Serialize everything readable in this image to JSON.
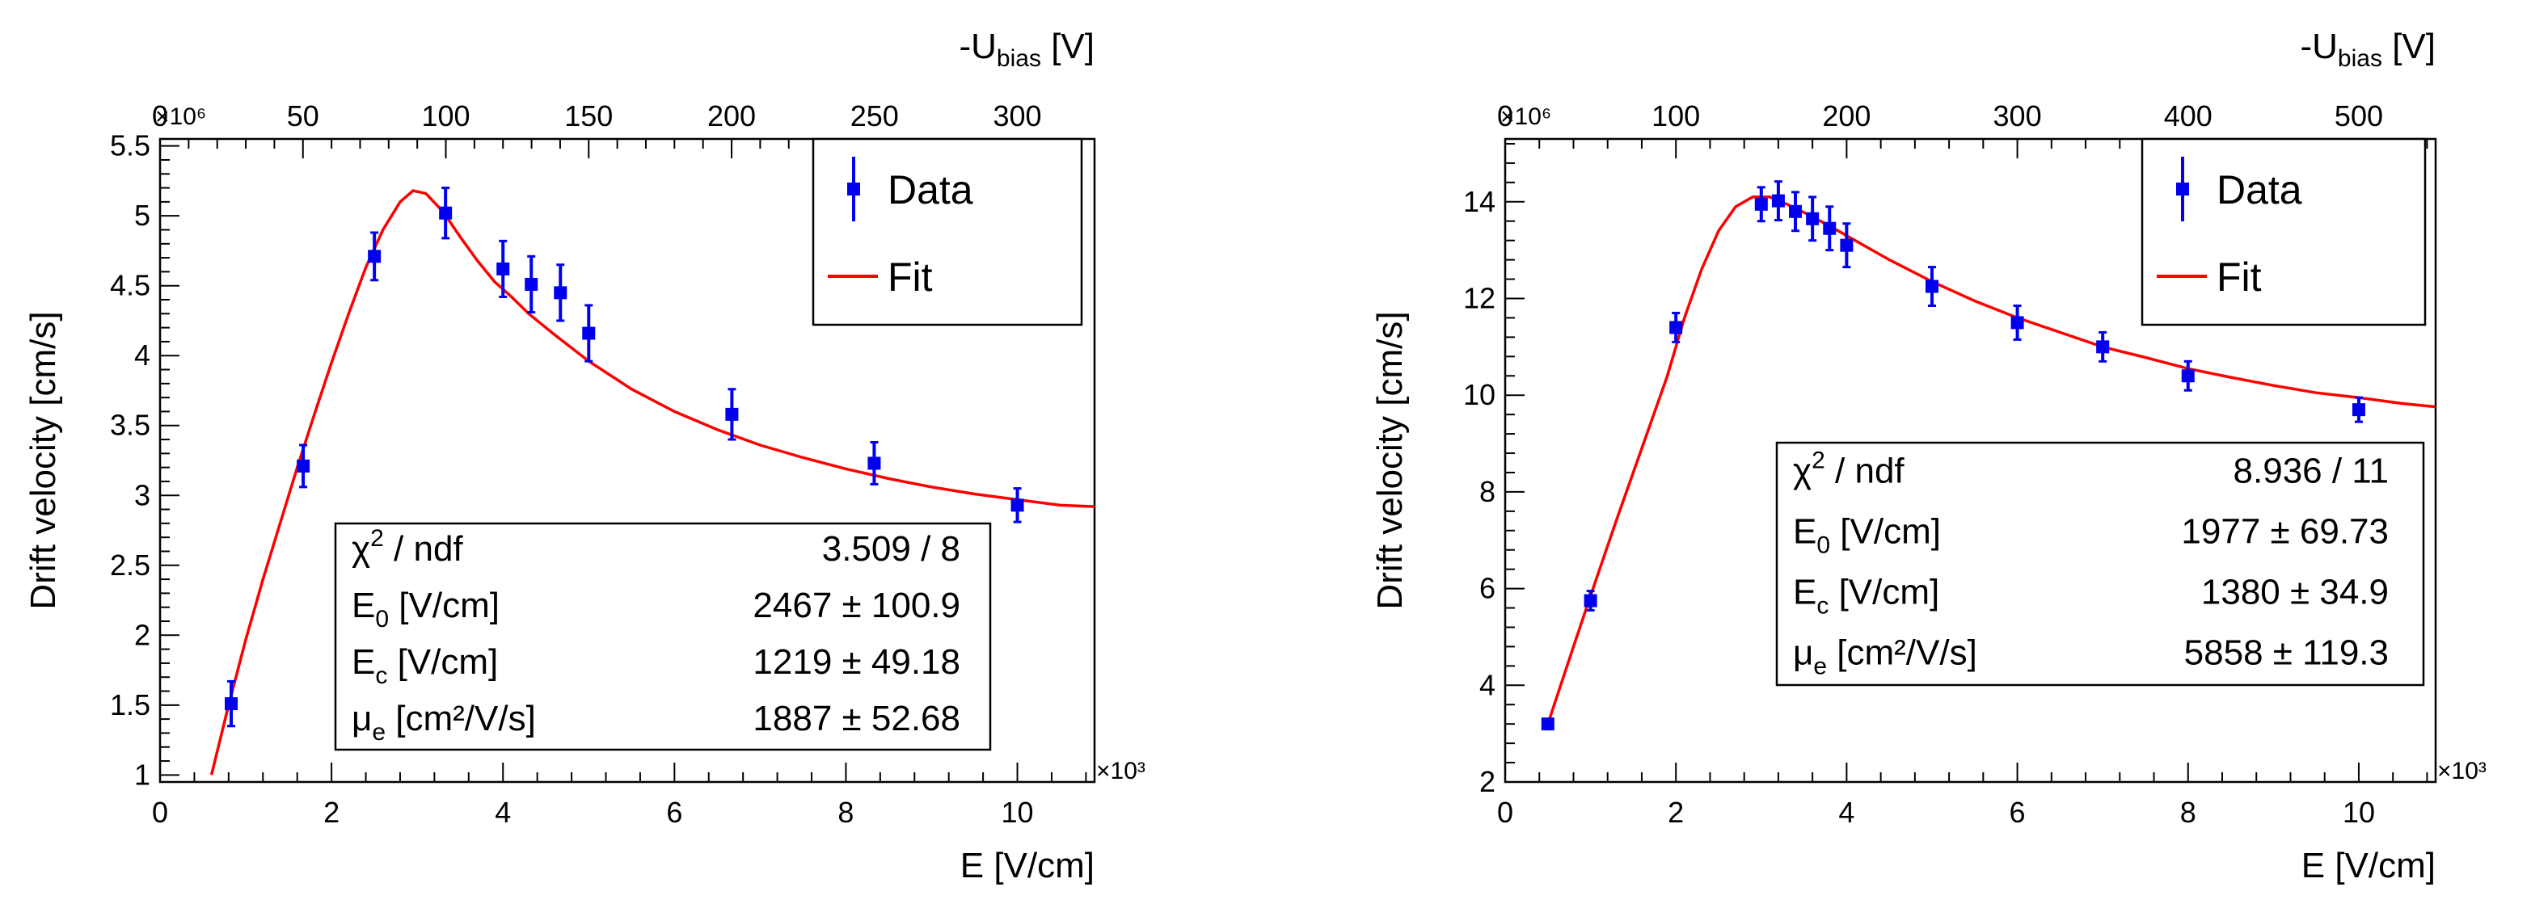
{
  "chart_data": [
    {
      "type": "scatter",
      "x_exponent_label": "×10³",
      "y_exponent_label": "×10⁶",
      "xlabel": "E [V/cm]",
      "ylabel": "Drift velocity [cm/s]",
      "top_axis_label": {
        "main": "-U",
        "sub": "bias",
        "unit": " [V]"
      },
      "xlim": [
        0,
        10.9
      ],
      "ylim": [
        0.95,
        5.55
      ],
      "x_ticks": [
        0,
        2,
        4,
        6,
        8,
        10
      ],
      "x_tick_labels": [
        "0",
        "2",
        "4",
        "6",
        "8",
        "10"
      ],
      "y_ticks": [
        1,
        1.5,
        2,
        2.5,
        3,
        3.5,
        4,
        4.5,
        5,
        5.5
      ],
      "y_tick_labels": [
        "1",
        "1.5",
        "2",
        "2.5",
        "3",
        "3.5",
        "4",
        "4.5",
        "5",
        "5.5"
      ],
      "top_ticks": [
        0,
        50,
        100,
        150,
        200,
        250,
        300
      ],
      "top_tick_labels": [
        "0",
        "50",
        "100",
        "150",
        "200",
        "250",
        "300"
      ],
      "top_axis_max": 327,
      "series": [
        {
          "name": "Data",
          "x": [
            0.83,
            1.67,
            2.5,
            3.33,
            4.0,
            4.33,
            4.67,
            5.0,
            6.67,
            8.33,
            10.0
          ],
          "y": [
            1.51,
            3.21,
            4.71,
            5.02,
            4.62,
            4.51,
            4.45,
            4.16,
            3.58,
            3.23,
            2.93
          ],
          "err": [
            0.16,
            0.15,
            0.17,
            0.18,
            0.2,
            0.2,
            0.2,
            0.2,
            0.18,
            0.15,
            0.12
          ],
          "color": "#0000ee"
        },
        {
          "name": "Fit",
          "x": [
            0.6,
            0.8,
            1.0,
            1.2,
            1.4,
            1.6,
            1.8,
            2.0,
            2.2,
            2.4,
            2.6,
            2.8,
            2.95,
            3.1,
            3.3,
            3.5,
            3.7,
            3.9,
            4.1,
            4.3,
            4.6,
            5.0,
            5.5,
            6.0,
            6.5,
            7.0,
            7.5,
            8.0,
            8.5,
            9.0,
            9.5,
            10.0,
            10.5,
            10.9
          ],
          "y": [
            1.0,
            1.5,
            1.97,
            2.4,
            2.8,
            3.2,
            3.58,
            3.95,
            4.3,
            4.63,
            4.9,
            5.1,
            5.18,
            5.16,
            5.03,
            4.85,
            4.68,
            4.53,
            4.42,
            4.3,
            4.15,
            3.96,
            3.76,
            3.6,
            3.47,
            3.36,
            3.27,
            3.19,
            3.12,
            3.06,
            3.01,
            2.97,
            2.93,
            2.92
          ],
          "color": "#ff0000"
        }
      ],
      "legend": {
        "placement": "top-right",
        "entries": [
          "Data",
          "Fit"
        ]
      },
      "stats": [
        {
          "label": "χ",
          "sup": "2",
          "tail": " / ndf",
          "value": "3.509 / 8"
        },
        {
          "label": "E",
          "sub": "0",
          "tail": " [V/cm]",
          "value": "2467 ± 100.9"
        },
        {
          "label": "E",
          "sub": "c",
          "tail": " [V/cm]",
          "value": "1219 ± 49.18"
        },
        {
          "label": "μ",
          "sub": "e",
          "tail": " [cm²/V/s]",
          "value": "1887 ± 52.68"
        }
      ]
    },
    {
      "type": "scatter",
      "x_exponent_label": "×10³",
      "y_exponent_label": "×10⁶",
      "xlabel": "E [V/cm]",
      "ylabel": "Drift velocity [cm/s]",
      "top_axis_label": {
        "main": "-U",
        "sub": "bias",
        "unit": " [V]"
      },
      "xlim": [
        0,
        10.9
      ],
      "ylim": [
        2,
        15.3
      ],
      "x_ticks": [
        0,
        2,
        4,
        6,
        8,
        10
      ],
      "x_tick_labels": [
        "0",
        "2",
        "4",
        "6",
        "8",
        "10"
      ],
      "y_ticks": [
        2,
        4,
        6,
        8,
        10,
        12,
        14
      ],
      "y_tick_labels": [
        "2",
        "4",
        "6",
        "8",
        "10",
        "12",
        "14"
      ],
      "top_ticks": [
        0,
        100,
        200,
        300,
        400,
        500
      ],
      "top_tick_labels": [
        "0",
        "100",
        "200",
        "300",
        "400",
        "500"
      ],
      "top_axis_max": 545,
      "series": [
        {
          "name": "Data",
          "x": [
            0.5,
            1.0,
            2.0,
            3.0,
            3.2,
            3.4,
            3.6,
            3.8,
            4.0,
            5.0,
            6.0,
            7.0,
            8.0,
            10.0
          ],
          "y": [
            3.2,
            5.75,
            11.4,
            13.95,
            14.02,
            13.8,
            13.65,
            13.45,
            13.1,
            12.25,
            11.5,
            11.0,
            10.4,
            9.7
          ],
          "err": [
            0.1,
            0.2,
            0.3,
            0.35,
            0.4,
            0.4,
            0.45,
            0.45,
            0.45,
            0.4,
            0.35,
            0.3,
            0.3,
            0.25
          ],
          "color": "#0000ee"
        },
        {
          "name": "Fit",
          "x": [
            0.5,
            0.8,
            1.0,
            1.3,
            1.6,
            1.9,
            2.1,
            2.3,
            2.5,
            2.7,
            2.9,
            3.1,
            3.3,
            3.5,
            3.8,
            4.1,
            4.5,
            5.0,
            5.5,
            6.0,
            6.5,
            7.0,
            7.5,
            8.0,
            8.5,
            9.0,
            9.5,
            10.0,
            10.5,
            10.9
          ],
          "y": [
            3.2,
            4.8,
            5.85,
            7.4,
            8.9,
            10.4,
            11.6,
            12.6,
            13.4,
            13.9,
            14.1,
            14.1,
            13.95,
            13.78,
            13.5,
            13.2,
            12.8,
            12.35,
            11.95,
            11.6,
            11.3,
            11.0,
            10.78,
            10.55,
            10.37,
            10.2,
            10.05,
            9.95,
            9.83,
            9.76
          ],
          "color": "#ff0000"
        }
      ],
      "legend": {
        "placement": "top-right",
        "entries": [
          "Data",
          "Fit"
        ]
      },
      "stats": [
        {
          "label": "χ",
          "sup": "2",
          "tail": " / ndf",
          "value": "8.936 / 11"
        },
        {
          "label": "E",
          "sub": "0",
          "tail": " [V/cm]",
          "value": "1977 ± 69.73"
        },
        {
          "label": "E",
          "sub": "c",
          "tail": " [V/cm]",
          "value": "1380 ±  34.9"
        },
        {
          "label": "μ",
          "sub": "e",
          "tail": " [cm²/V/s]",
          "value": "5858 ± 119.3"
        }
      ]
    }
  ]
}
